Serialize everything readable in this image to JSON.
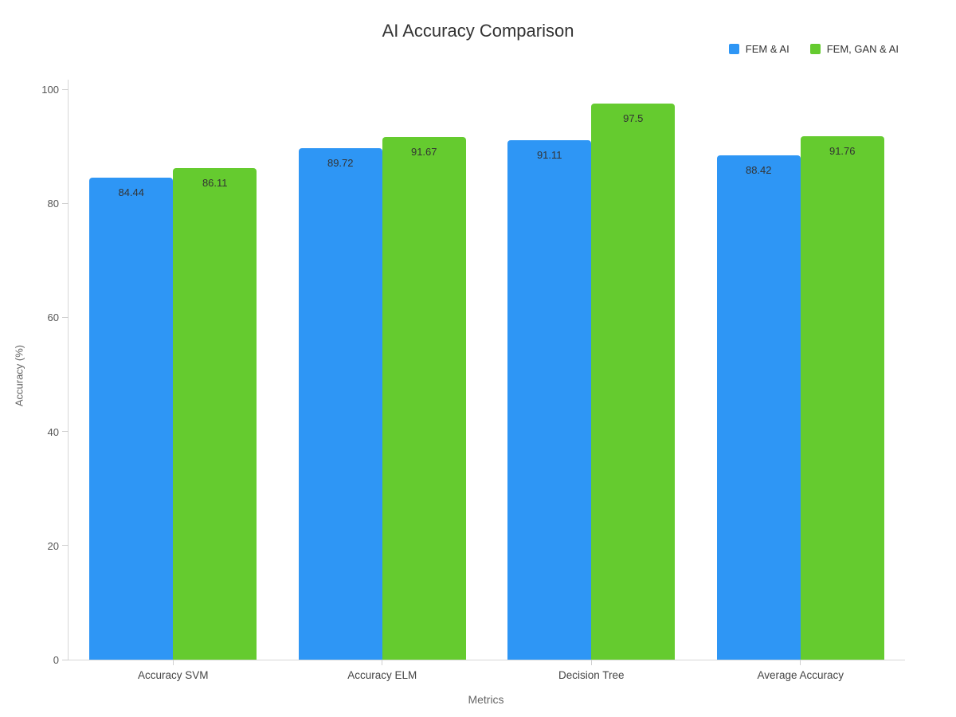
{
  "chart_data": {
    "type": "bar",
    "title": "AI Accuracy Comparison",
    "xlabel": "Metrics",
    "ylabel": "Accuracy (%)",
    "categories": [
      "Accuracy SVM",
      "Accuracy ELM",
      "Decision Tree",
      "Average Accuracy"
    ],
    "series": [
      {
        "name": "FEM & AI",
        "color": "#2e96f5",
        "values": [
          84.44,
          89.72,
          91.11,
          88.42
        ]
      },
      {
        "name": "FEM, GAN & AI",
        "color": "#65cb2f",
        "values": [
          86.11,
          91.67,
          97.5,
          91.76
        ]
      }
    ],
    "value_labels": [
      [
        "84.44",
        "89.72",
        "91.11",
        "88.42"
      ],
      [
        "86.11",
        "91.67",
        "97.5",
        "91.76"
      ]
    ],
    "y_ticks": [
      0,
      20,
      40,
      60,
      80,
      100
    ],
    "ylim": [
      0,
      100
    ],
    "grid": false,
    "legend_position": "top-right"
  }
}
